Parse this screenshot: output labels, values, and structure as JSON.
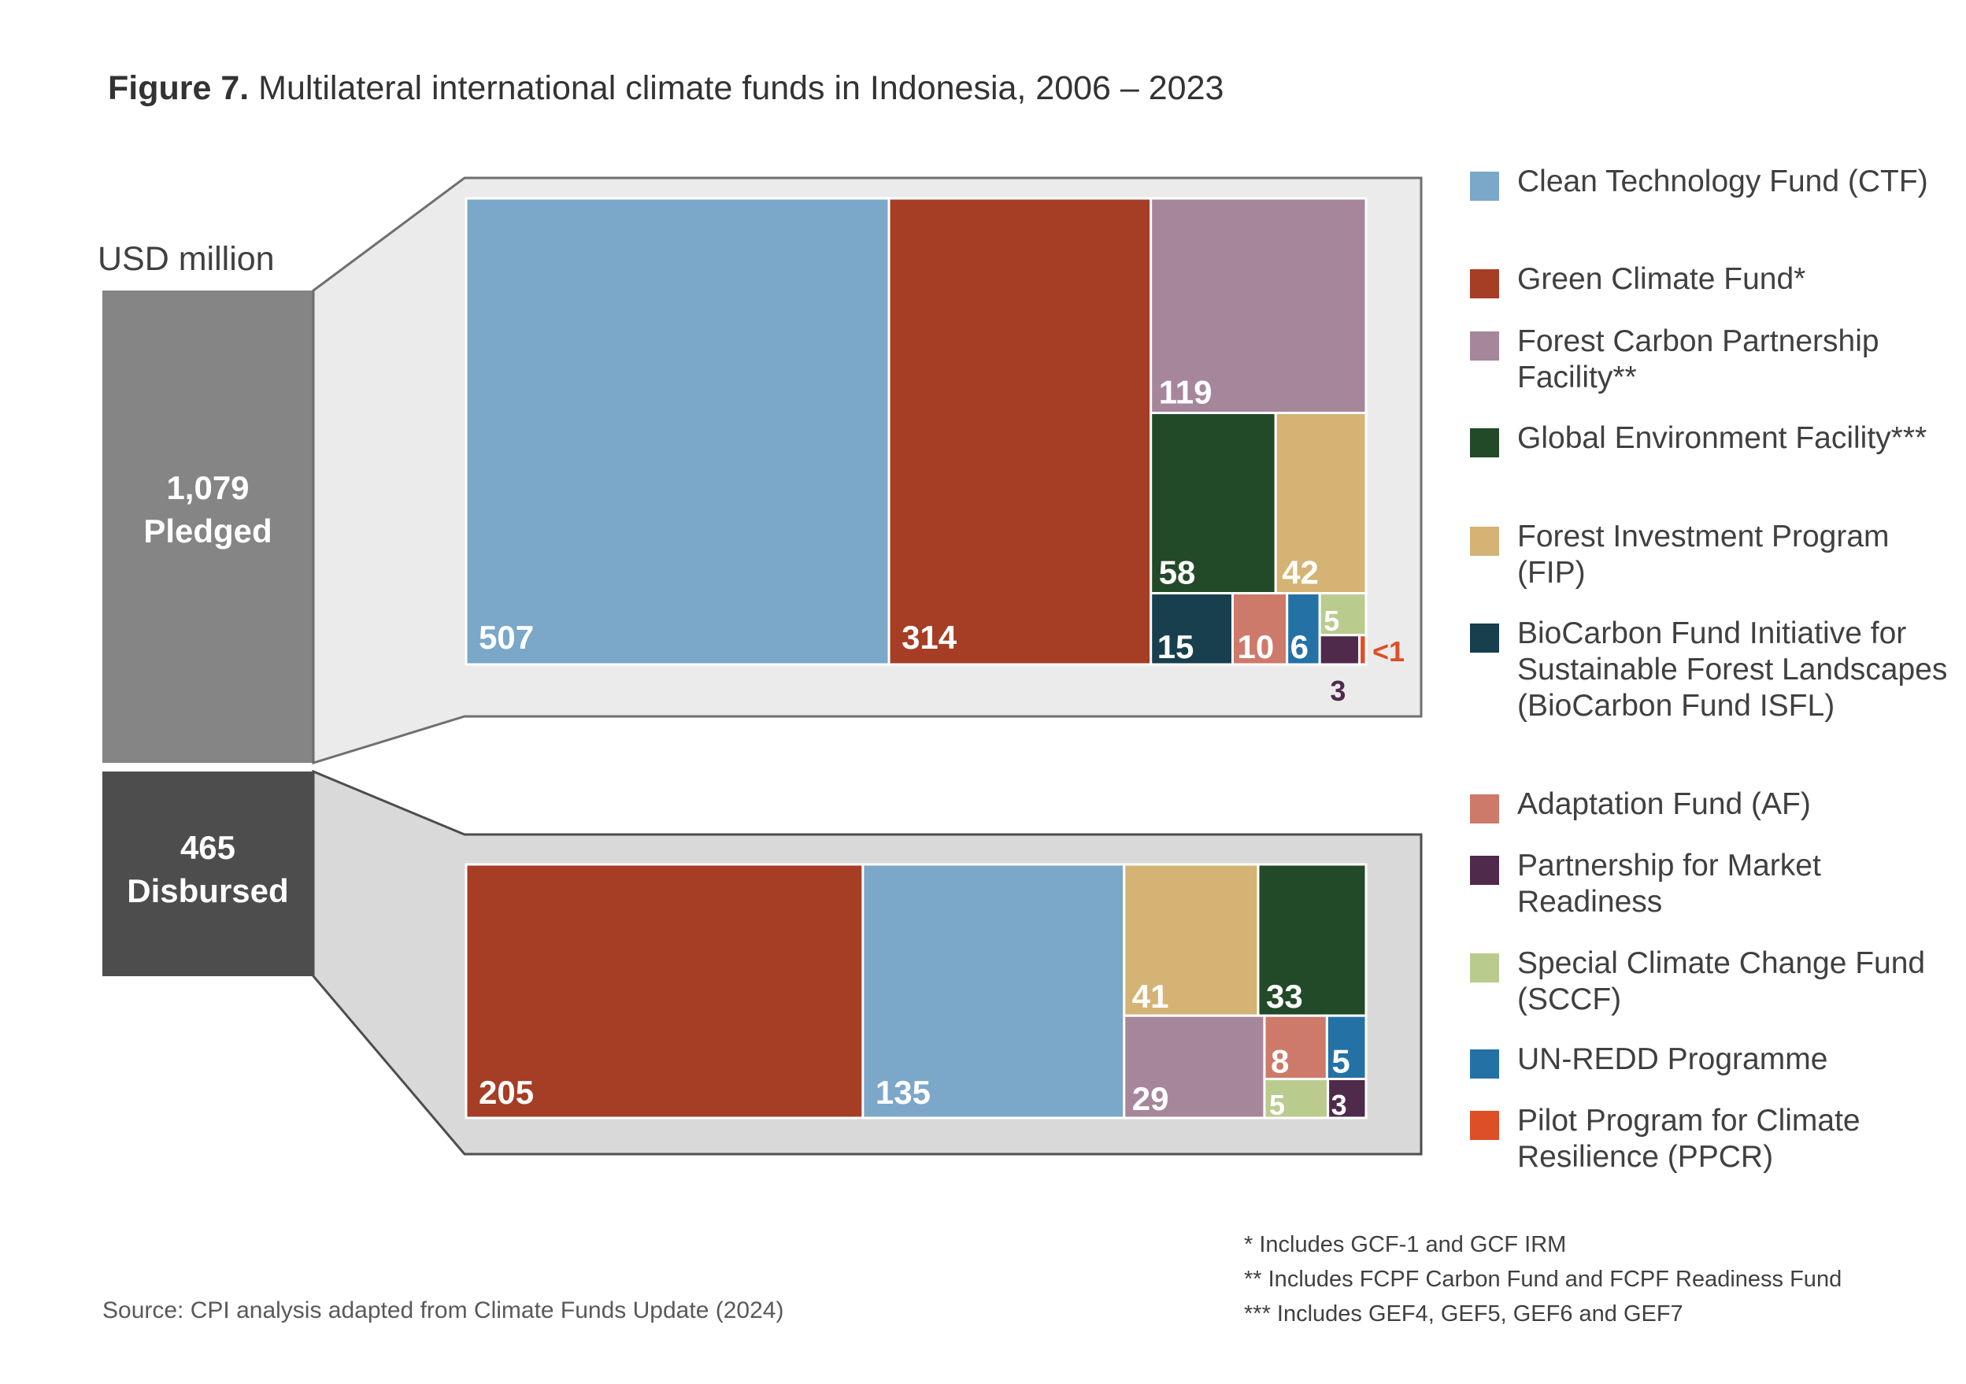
{
  "title_bold": "Figure 7.",
  "title_rest": " Multilateral international climate funds in Indonesia, 2006 – 2023",
  "unit_label": "USD million",
  "totals": {
    "pledged_value": "1,079",
    "pledged_label": "Pledged",
    "disbursed_value": "465",
    "disbursed_label": "Disbursed"
  },
  "colors": {
    "CTF": "#7BA7C9",
    "GCF": "#A63D25",
    "FCPF": "#A6869B",
    "GEF": "#224A28",
    "FIP": "#D4B374",
    "BioCarbon": "#173F4E",
    "AF": "#CD7A6A",
    "PMR": "#4F2A4B",
    "SCCF": "#BACB8E",
    "UNREDD": "#2471A5",
    "PPCR": "#DD4F27",
    "pledged_bar": "#858585",
    "disbursed_bar": "#4D4D4D",
    "panel_pledged": "#EBEBEB",
    "panel_disbursed": "#D9D9D9"
  },
  "chart_data": [
    {
      "type": "treemap",
      "name": "Pledged",
      "total": 1079,
      "items": [
        {
          "fund": "CTF",
          "value": 507,
          "label": "507"
        },
        {
          "fund": "GCF",
          "value": 314,
          "label": "314"
        },
        {
          "fund": "FCPF",
          "value": 119,
          "label": "119"
        },
        {
          "fund": "GEF",
          "value": 58,
          "label": "58"
        },
        {
          "fund": "FIP",
          "value": 42,
          "label": "42"
        },
        {
          "fund": "BioCarbon",
          "value": 15,
          "label": "15"
        },
        {
          "fund": "AF",
          "value": 10,
          "label": "10"
        },
        {
          "fund": "UNREDD",
          "value": 6,
          "label": "6"
        },
        {
          "fund": "SCCF",
          "value": 5,
          "label": "5"
        },
        {
          "fund": "PMR",
          "value": 3,
          "label": "3"
        },
        {
          "fund": "PPCR",
          "value": 0.5,
          "label": "<1"
        }
      ]
    },
    {
      "type": "treemap",
      "name": "Disbursed",
      "total": 465,
      "items": [
        {
          "fund": "GCF",
          "value": 205,
          "label": "205"
        },
        {
          "fund": "CTF",
          "value": 135,
          "label": "135"
        },
        {
          "fund": "FIP",
          "value": 41,
          "label": "41"
        },
        {
          "fund": "GEF",
          "value": 33,
          "label": "33"
        },
        {
          "fund": "FCPF",
          "value": 29,
          "label": "29"
        },
        {
          "fund": "AF",
          "value": 8,
          "label": "8"
        },
        {
          "fund": "UNREDD",
          "value": 5,
          "label": "5"
        },
        {
          "fund": "SCCF",
          "value": 5,
          "label": "5"
        },
        {
          "fund": "PMR",
          "value": 3,
          "label": "3"
        }
      ]
    }
  ],
  "legend": [
    {
      "fund": "CTF",
      "label": "Clean Technology Fund (CTF)"
    },
    {
      "fund": "GCF",
      "label": "Green Climate Fund*"
    },
    {
      "fund": "FCPF",
      "label": "Forest Carbon Partnership Facility**"
    },
    {
      "fund": "GEF",
      "label": "Global Environment Facility***"
    },
    {
      "fund": "FIP",
      "label": "Forest Investment Program (FIP)"
    },
    {
      "fund": "BioCarbon",
      "label": "BioCarbon Fund Initiative for Sustainable Forest Landscapes (BioCarbon Fund ISFL)"
    },
    {
      "fund": "AF",
      "label": "Adaptation Fund (AF)"
    },
    {
      "fund": "PMR",
      "label": "Partnership for Market Readiness"
    },
    {
      "fund": "SCCF",
      "label": "Special Climate Change Fund (SCCF)"
    },
    {
      "fund": "UNREDD",
      "label": "UN-REDD Programme"
    },
    {
      "fund": "PPCR",
      "label": "Pilot Program for Climate Resilience (PPCR)"
    }
  ],
  "notes": [
    "* Includes GCF-1 and GCF IRM",
    "** Includes FCPF Carbon Fund and FCPF Readiness Fund",
    "*** Includes GEF4, GEF5, GEF6 and GEF7"
  ],
  "source": "Source: CPI analysis adapted from Climate Funds Update (2024)"
}
